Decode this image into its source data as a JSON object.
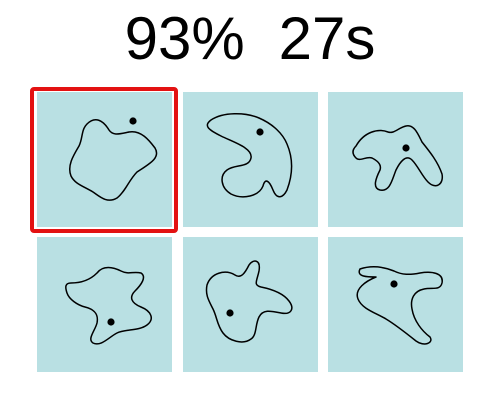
{
  "hud": {
    "accuracy": "93%",
    "time_left": "27s"
  },
  "colors": {
    "tile_background": "#b9e0e3",
    "selection": "#e31212",
    "shape_stroke": "#000000"
  },
  "tiles": [
    {
      "id": "tile-1",
      "selected": true
    },
    {
      "id": "tile-2",
      "selected": false
    },
    {
      "id": "tile-3",
      "selected": false
    },
    {
      "id": "tile-4",
      "selected": false
    },
    {
      "id": "tile-5",
      "selected": false
    },
    {
      "id": "tile-6",
      "selected": false
    }
  ]
}
